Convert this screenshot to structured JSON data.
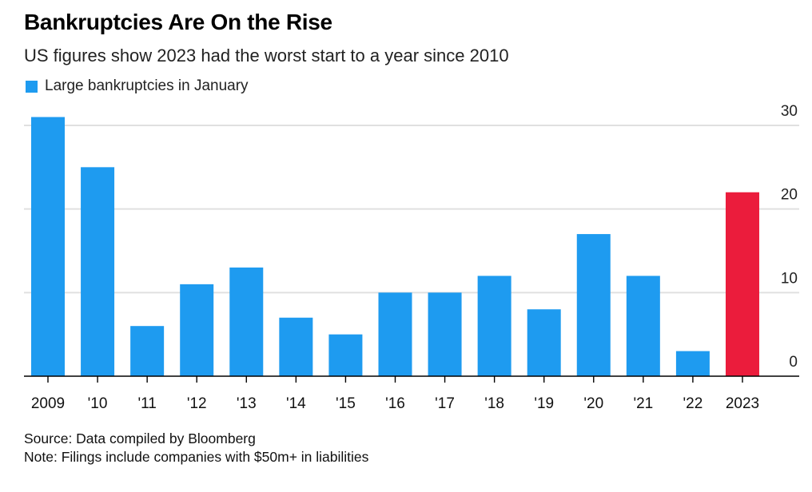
{
  "title": "Bankruptcies Are On the Rise",
  "subtitle": "US figures show 2023 had the worst start to a year since 2010",
  "legend": {
    "label": "Large bankruptcies in January"
  },
  "colors": {
    "bar": "#1e9bf0",
    "highlight": "#eb1c3c",
    "grid": "#e0e0e0",
    "axis": "#000000"
  },
  "footer": {
    "source": "Source: Data compiled by Bloomberg",
    "note": "Note: Filings include companies with $50m+ in liabilities"
  },
  "chart_data": {
    "type": "bar",
    "categories": [
      "2009",
      "'10",
      "'11",
      "'12",
      "'13",
      "'14",
      "'15",
      "'16",
      "'17",
      "'18",
      "'19",
      "'20",
      "'21",
      "'22",
      "2023"
    ],
    "series": [
      {
        "name": "Large bankruptcies in January",
        "values": [
          31,
          25,
          6,
          11,
          13,
          7,
          5,
          10,
          10,
          12,
          8,
          17,
          12,
          3,
          22
        ]
      }
    ],
    "highlight_index": 14,
    "ylim": [
      0,
      30
    ],
    "yticks": [
      0,
      10,
      20,
      30
    ],
    "y_axis_side": "right",
    "grid": true,
    "legend_position": "top-left"
  }
}
